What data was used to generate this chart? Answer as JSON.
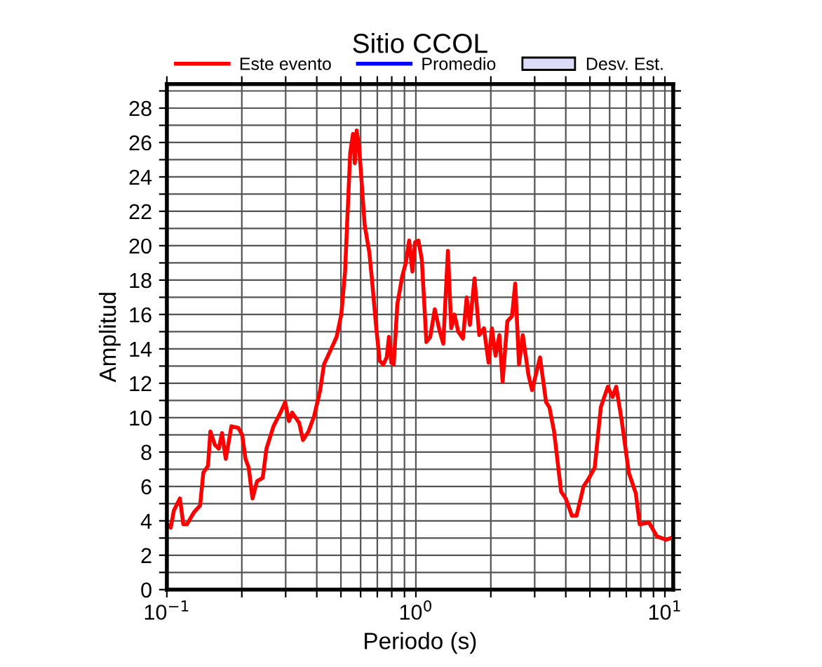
{
  "chart_data": {
    "type": "line",
    "title": "Sitio CCOL",
    "xlabel": "Periodo (s)",
    "ylabel": "Amplitud",
    "log": "x",
    "grid": true,
    "legend": "top",
    "xlim": [
      0.1,
      10.8
    ],
    "ylim": [
      0,
      29.4
    ],
    "xticks": [
      {
        "value": 0.1,
        "label": "10$^{−1}$"
      },
      {
        "value": 0.2,
        "label": null
      },
      {
        "value": 0.3,
        "label": null
      },
      {
        "value": 0.4,
        "label": null
      },
      {
        "value": 0.5,
        "label": null
      },
      {
        "value": 0.6,
        "label": null
      },
      {
        "value": 0.7,
        "label": null
      },
      {
        "value": 0.8,
        "label": null
      },
      {
        "value": 0.9,
        "label": null
      },
      {
        "value": 1,
        "label": "10$^{0}$"
      },
      {
        "value": 2,
        "label": null
      },
      {
        "value": 3,
        "label": null
      },
      {
        "value": 4,
        "label": null
      },
      {
        "value": 5,
        "label": null
      },
      {
        "value": 6,
        "label": null
      },
      {
        "value": 7,
        "label": null
      },
      {
        "value": 8,
        "label": null
      },
      {
        "value": 9,
        "label": null
      },
      {
        "value": 10,
        "label": "10$^{1}$"
      }
    ],
    "yticks": [
      0,
      {
        "value": 1,
        "label": null
      },
      2,
      {
        "value": 3,
        "label": null
      },
      4,
      {
        "value": 5,
        "label": null
      },
      6,
      {
        "value": 7,
        "label": null
      },
      8,
      {
        "value": 9,
        "label": null
      },
      10,
      {
        "value": 11,
        "label": null
      },
      12,
      {
        "value": 13,
        "label": null
      },
      14,
      {
        "value": 15,
        "label": null
      },
      16,
      {
        "value": 17,
        "label": null
      },
      18,
      {
        "value": 19,
        "label": null
      },
      20,
      {
        "value": 21,
        "label": null
      },
      22,
      {
        "value": 23,
        "label": null
      },
      24,
      {
        "value": 25,
        "label": null
      },
      26,
      {
        "value": 27,
        "label": null
      },
      28,
      {
        "value": 29,
        "label": null
      }
    ],
    "series": [
      {
        "name": "Este evento",
        "color": "#ff0000",
        "x": [
          0.1004,
          0.1036,
          0.1067,
          0.1128,
          0.1164,
          0.1204,
          0.1285,
          0.136,
          0.1401,
          0.1463,
          0.1495,
          0.1561,
          0.1616,
          0.1665,
          0.1724,
          0.1816,
          0.1938,
          0.2007,
          0.2069,
          0.2131,
          0.2207,
          0.2303,
          0.2426,
          0.2512,
          0.2681,
          0.286,
          0.2986,
          0.3092,
          0.3185,
          0.3399,
          0.352,
          0.3707,
          0.3904,
          0.4128,
          0.4276,
          0.4604,
          0.4806,
          0.5017,
          0.5196,
          0.5448,
          0.5591,
          0.5686,
          0.5784,
          0.5913,
          0.6229,
          0.6502,
          0.6646,
          0.6935,
          0.7155,
          0.7401,
          0.7635,
          0.7796,
          0.797,
          0.8147,
          0.8427,
          0.8808,
          0.911,
          0.9397,
          0.9681,
          0.9935,
          1.0235,
          1.056,
          1.084,
          1.102,
          1.142,
          1.191,
          1.243,
          1.288,
          1.345,
          1.387,
          1.429,
          1.48,
          1.545,
          1.6,
          1.648,
          1.72,
          1.797,
          1.876,
          1.958,
          2.021,
          2.089,
          2.164,
          2.23,
          2.33,
          2.432,
          2.506,
          2.595,
          2.688,
          2.831,
          2.928,
          3.152,
          3.333,
          3.438,
          3.589,
          3.83,
          3.998,
          4.233,
          4.418,
          4.713,
          4.963,
          5.227,
          5.528,
          5.898,
          6.164,
          6.376,
          6.714,
          7.164,
          7.643,
          7.915,
          8.636,
          9.288,
          10.13,
          10.57
        ],
        "values": [
          3.8,
          3.6,
          4.6,
          5.3,
          3.8,
          3.8,
          4.5,
          4.9,
          6.8,
          7.2,
          9.2,
          8.4,
          8.2,
          9.1,
          7.6,
          9.5,
          9.4,
          9.0,
          7.6,
          7.1,
          5.3,
          6.3,
          6.5,
          8.2,
          9.5,
          10.3,
          10.9,
          9.8,
          10.3,
          9.7,
          8.7,
          9.2,
          10.1,
          11.6,
          13.1,
          14.1,
          14.7,
          16.0,
          18.5,
          25.4,
          26.5,
          24.8,
          26.7,
          25.8,
          21.2,
          19.6,
          18.2,
          15.2,
          13.3,
          13.1,
          13.5,
          14.7,
          13.2,
          13.1,
          16.6,
          18.2,
          19.0,
          20.3,
          18.5,
          20.2,
          20.3,
          19.2,
          16.3,
          14.4,
          14.7,
          16.3,
          15.1,
          14.3,
          19.7,
          15.2,
          16.0,
          15.0,
          14.6,
          17.0,
          15.4,
          18.1,
          14.8,
          15.2,
          13.2,
          15.2,
          13.6,
          14.8,
          12.1,
          15.6,
          15.9,
          17.8,
          13.1,
          14.8,
          12.5,
          11.6,
          13.5,
          10.9,
          10.6,
          9.2,
          5.7,
          5.3,
          4.3,
          4.3,
          6.0,
          6.5,
          7.1,
          10.6,
          11.8,
          11.2,
          11.8,
          9.8,
          6.8,
          5.6,
          3.8,
          3.9,
          3.1,
          2.9,
          3.0
        ]
      },
      {
        "name": "Promedio",
        "type": "line",
        "color": "#0000ff"
      },
      {
        "name": "Desv. Est.",
        "type": "area",
        "color": "#dcdcf8"
      }
    ]
  }
}
